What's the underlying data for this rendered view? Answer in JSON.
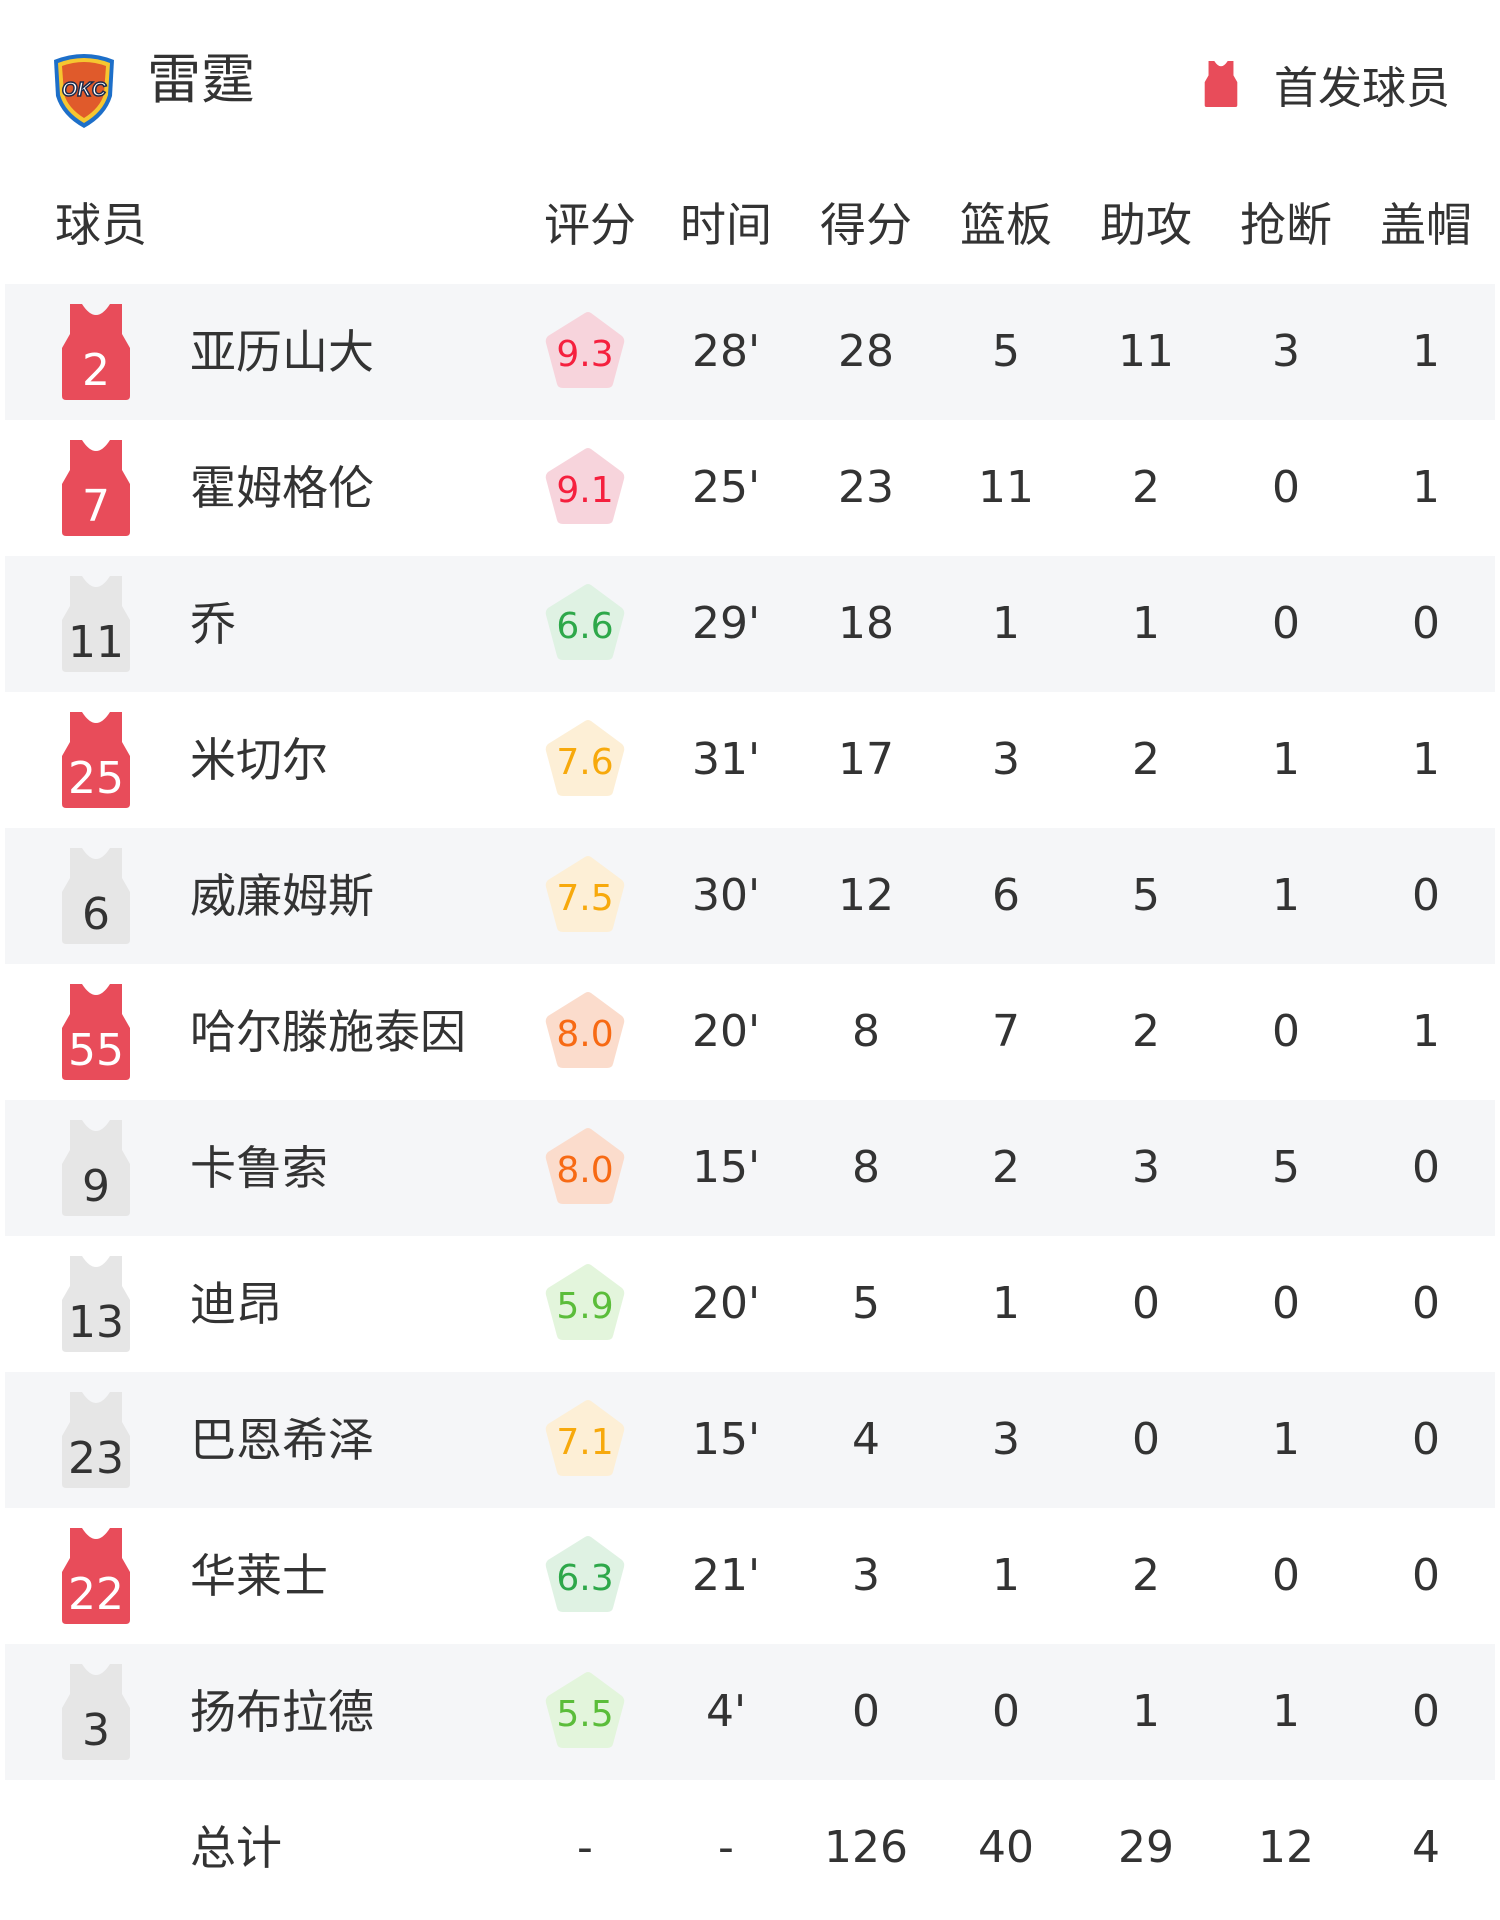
{
  "team": {
    "name": "雷霆",
    "logo_text": "OKC"
  },
  "legend": {
    "label": "首发球员",
    "starter_color": "#e84c5a",
    "bench_color": "#e6e6e6"
  },
  "columns": {
    "player": "球员",
    "rating": "评分",
    "time": "时间",
    "points": "得分",
    "rebounds": "篮板",
    "assists": "助攻",
    "steals": "抢断",
    "blocks": "盖帽"
  },
  "rating_colors": {
    "red": {
      "bg": "#f7d4dc",
      "text": "#f5203e"
    },
    "orange": {
      "bg": "#fbdccc",
      "text": "#f76a14"
    },
    "yellow": {
      "bg": "#fdefd6",
      "text": "#f7a90c"
    },
    "green": {
      "bg": "#dff2e3",
      "text": "#2ea84a"
    },
    "lightgreen": {
      "bg": "#e3f5dc",
      "text": "#5bbd3a"
    }
  },
  "players": [
    {
      "number": "2",
      "name": "亚历山大",
      "starter": true,
      "rating": "9.3",
      "tier": "red",
      "time": "28'",
      "points": "28",
      "rebounds": "5",
      "assists": "11",
      "steals": "3",
      "blocks": "1"
    },
    {
      "number": "7",
      "name": "霍姆格伦",
      "starter": true,
      "rating": "9.1",
      "tier": "red",
      "time": "25'",
      "points": "23",
      "rebounds": "11",
      "assists": "2",
      "steals": "0",
      "blocks": "1"
    },
    {
      "number": "11",
      "name": "乔",
      "starter": false,
      "rating": "6.6",
      "tier": "green",
      "time": "29'",
      "points": "18",
      "rebounds": "1",
      "assists": "1",
      "steals": "0",
      "blocks": "0"
    },
    {
      "number": "25",
      "name": "米切尔",
      "starter": true,
      "rating": "7.6",
      "tier": "yellow",
      "time": "31'",
      "points": "17",
      "rebounds": "3",
      "assists": "2",
      "steals": "1",
      "blocks": "1"
    },
    {
      "number": "6",
      "name": "威廉姆斯",
      "starter": false,
      "rating": "7.5",
      "tier": "yellow",
      "time": "30'",
      "points": "12",
      "rebounds": "6",
      "assists": "5",
      "steals": "1",
      "blocks": "0"
    },
    {
      "number": "55",
      "name": "哈尔滕施泰因",
      "starter": true,
      "rating": "8.0",
      "tier": "orange",
      "time": "20'",
      "points": "8",
      "rebounds": "7",
      "assists": "2",
      "steals": "0",
      "blocks": "1"
    },
    {
      "number": "9",
      "name": "卡鲁索",
      "starter": false,
      "rating": "8.0",
      "tier": "orange",
      "time": "15'",
      "points": "8",
      "rebounds": "2",
      "assists": "3",
      "steals": "5",
      "blocks": "0"
    },
    {
      "number": "13",
      "name": "迪昂",
      "starter": false,
      "rating": "5.9",
      "tier": "lightgreen",
      "time": "20'",
      "points": "5",
      "rebounds": "1",
      "assists": "0",
      "steals": "0",
      "blocks": "0"
    },
    {
      "number": "23",
      "name": "巴恩希泽",
      "starter": false,
      "rating": "7.1",
      "tier": "yellow",
      "time": "15'",
      "points": "4",
      "rebounds": "3",
      "assists": "0",
      "steals": "1",
      "blocks": "0"
    },
    {
      "number": "22",
      "name": "华莱士",
      "starter": true,
      "rating": "6.3",
      "tier": "green",
      "time": "21'",
      "points": "3",
      "rebounds": "1",
      "assists": "2",
      "steals": "0",
      "blocks": "0"
    },
    {
      "number": "3",
      "name": "扬布拉德",
      "starter": false,
      "rating": "5.5",
      "tier": "lightgreen",
      "time": "4'",
      "points": "0",
      "rebounds": "0",
      "assists": "1",
      "steals": "1",
      "blocks": "0"
    }
  ],
  "total": {
    "label": "总计",
    "rating": "-",
    "time": "-",
    "points": "126",
    "rebounds": "40",
    "assists": "29",
    "steals": "12",
    "blocks": "4"
  }
}
